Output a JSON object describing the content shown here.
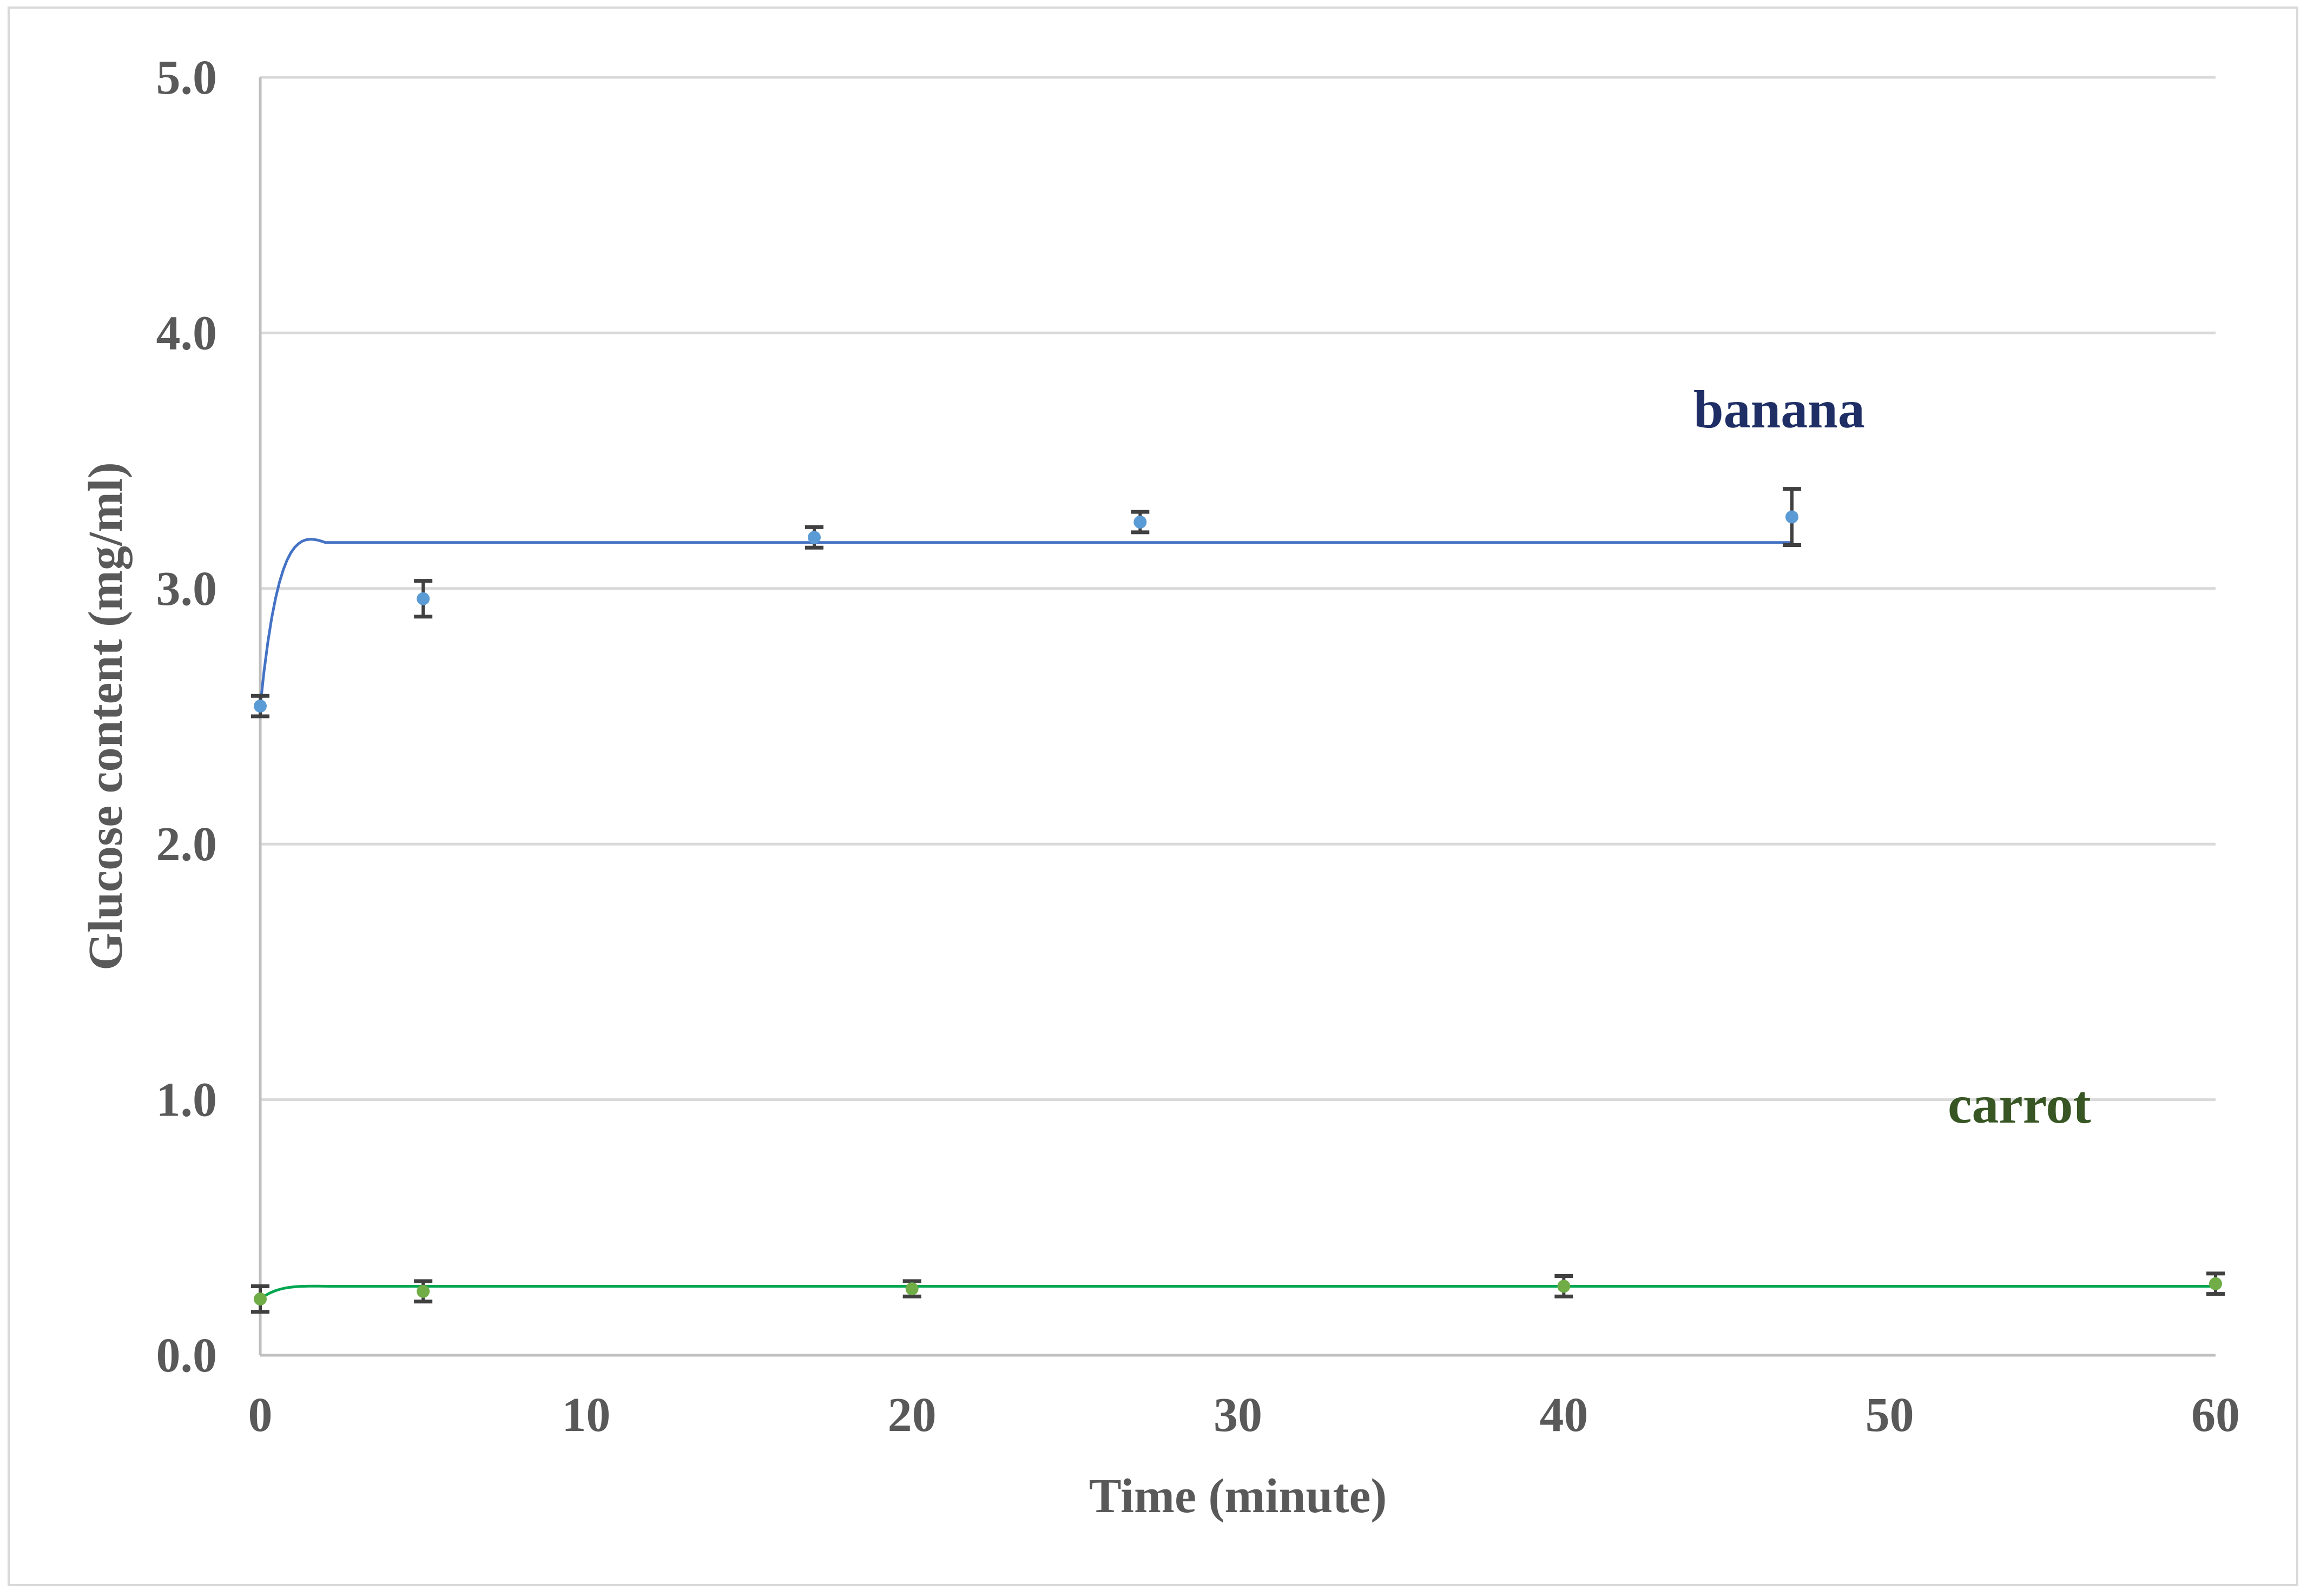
{
  "chart_data": {
    "type": "scatter",
    "title": "",
    "xlabel": "Time (minute)",
    "ylabel": "Glucose content (mg/ml)",
    "xlim": [
      0,
      60
    ],
    "ylim": [
      0,
      5
    ],
    "xticks": [
      "0",
      "10",
      "20",
      "30",
      "40",
      "50",
      "60"
    ],
    "yticks": [
      "0.0",
      "1.0",
      "2.0",
      "3.0",
      "4.0",
      "5.0"
    ],
    "grid": "horizontal",
    "legend": "inline labels",
    "series": [
      {
        "name": "banana",
        "label_color": "#1f2f66",
        "line_color": "#4472c4",
        "marker_color": "#5b9bd5",
        "x": [
          0,
          5,
          17,
          27,
          47
        ],
        "y": [
          2.54,
          2.96,
          3.2,
          3.26,
          3.28
        ],
        "error": [
          0.04,
          0.07,
          0.04,
          0.04,
          0.11
        ],
        "fit_plateau": 3.18,
        "fit_end_x": 47
      },
      {
        "name": "carrot",
        "label_color": "#375623",
        "line_color": "#00a650",
        "marker_color": "#70ad47",
        "x": [
          0,
          5,
          20,
          40,
          60
        ],
        "y": [
          0.22,
          0.25,
          0.26,
          0.27,
          0.28
        ],
        "error": [
          0.05,
          0.04,
          0.03,
          0.04,
          0.04
        ],
        "fit_plateau": 0.27,
        "fit_end_x": 60
      }
    ]
  }
}
